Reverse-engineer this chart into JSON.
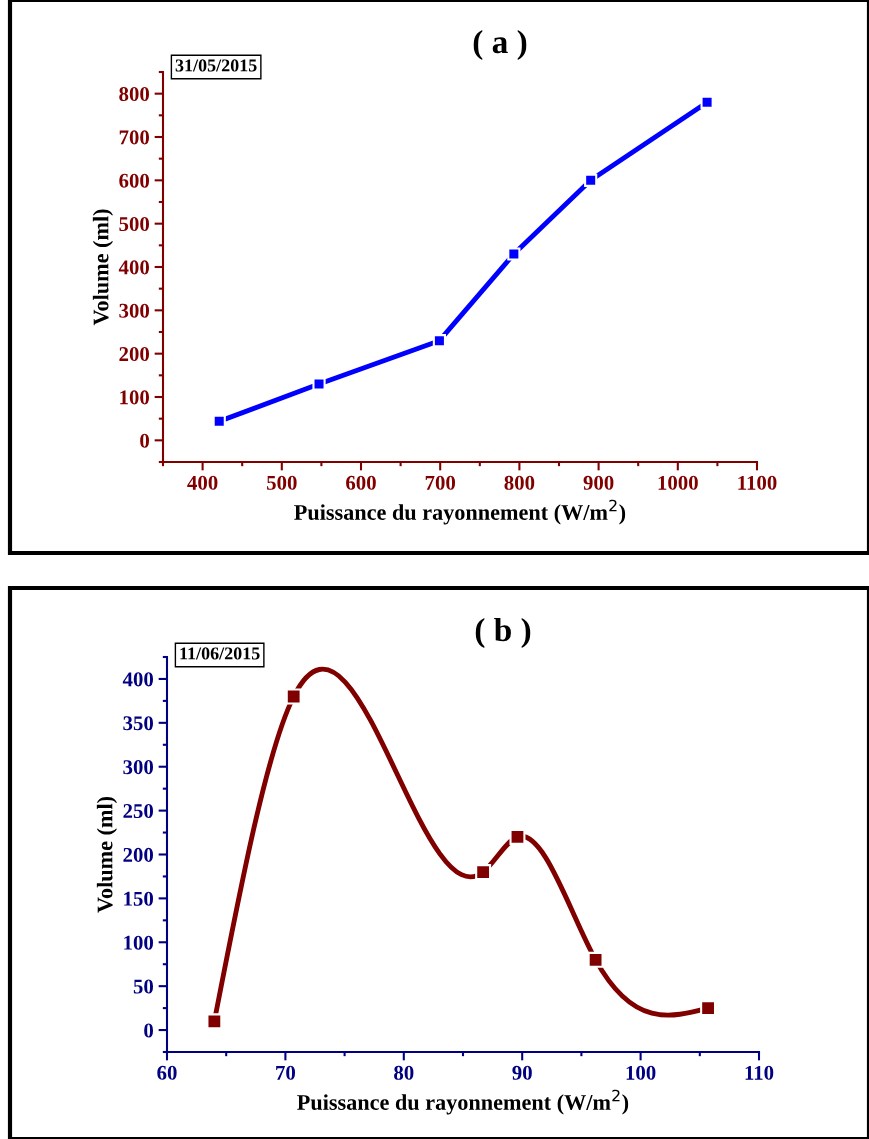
{
  "chart_data": [
    {
      "type": "line",
      "title": "( a )",
      "annotations": [
        "31/05/2015"
      ],
      "xlabel": "Puissance du rayonnement (W/m$^{2}$)",
      "ylabel": "Volume (ml)",
      "x": [
        421,
        547,
        699,
        793,
        890,
        1037
      ],
      "series": [
        {
          "color": "#0000ff",
          "values": [
            44,
            130,
            230,
            430,
            600,
            780
          ]
        }
      ],
      "xlim": [
        350,
        1100
      ],
      "xticks": [
        400,
        500,
        600,
        700,
        800,
        900,
        1000,
        1100
      ],
      "ylim": [
        -50,
        850
      ],
      "yticks": [
        0,
        100,
        200,
        300,
        400,
        500,
        600,
        700,
        800
      ],
      "marker": "square",
      "line_style": "solid",
      "grid": false,
      "legend": false
    },
    {
      "type": "line",
      "title": "( b )",
      "annotations": [
        "11/06/2015"
      ],
      "xlabel": "Puissance du rayonnement (W/m$^{2}$)",
      "ylabel": "Volume (ml)",
      "x": [
        64.0,
        70.7,
        86.7,
        89.6,
        96.2,
        105.7
      ],
      "series": [
        {
          "color": "#800000",
          "values": [
            10,
            380,
            180,
            220,
            80,
            25
          ]
        }
      ],
      "xlim": [
        60,
        110
      ],
      "xticks": [
        60,
        70,
        80,
        90,
        100,
        110
      ],
      "ylim": [
        -25,
        425
      ],
      "yticks": [
        0,
        50,
        100,
        150,
        200,
        250,
        300,
        350,
        400
      ],
      "marker": "square",
      "line_style": "solid",
      "grid": false,
      "legend": false
    }
  ]
}
